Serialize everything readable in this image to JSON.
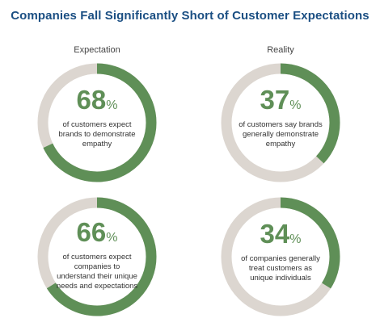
{
  "colors": {
    "filled": "#5f8f57",
    "track": "#dcd6d0",
    "title": "#1b4f83"
  },
  "chart_data": {
    "type": "pie",
    "title": "Companies Fall Significantly Short of Customer Expectations",
    "columns": [
      "Expectation",
      "Reality"
    ],
    "items": [
      {
        "column": "Expectation",
        "value": 68,
        "number": "68",
        "unit": "%",
        "description": "of customers expect brands to demonstrate empathy"
      },
      {
        "column": "Reality",
        "value": 37,
        "number": "37",
        "unit": "%",
        "description": "of customers say brands generally demonstrate empathy"
      },
      {
        "column": "Expectation",
        "value": 66,
        "number": "66",
        "unit": "%",
        "description": "of customers expect companies to understand their unique needs and expectations"
      },
      {
        "column": "Reality",
        "value": 34,
        "number": "34",
        "unit": "%",
        "description": "of companies generally treat customers as unique individuals"
      }
    ]
  }
}
